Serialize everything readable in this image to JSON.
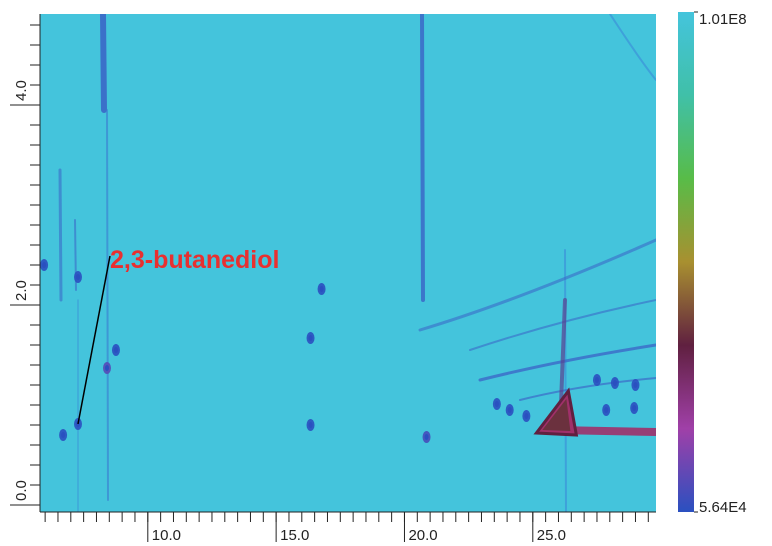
{
  "chart_data": {
    "type": "heatmap",
    "xlim": [
      5.8,
      29.8
    ],
    "ylim": [
      -0.07,
      4.91
    ],
    "xticks": [
      {
        "value": 10,
        "label": "10.0"
      },
      {
        "value": 15,
        "label": "15.0"
      },
      {
        "value": 20,
        "label": "20.0"
      },
      {
        "value": 25,
        "label": "25.0"
      }
    ],
    "yticks": [
      {
        "value": 0,
        "label": "0.0"
      },
      {
        "value": 2,
        "label": "2.0"
      },
      {
        "value": 4,
        "label": "4.0"
      }
    ],
    "background": "#44c4dc",
    "colorbar": {
      "log": true,
      "lim": [
        56400,
        101000000
      ],
      "ticks": [
        {
          "value": 101000000,
          "label": "1.01E8"
        },
        {
          "value": 56400,
          "label": "5.64E4"
        }
      ],
      "colors": [
        "#2a50c0",
        "#a040a8",
        "#602040",
        "#a89030",
        "#58bc48",
        "#40c0a8",
        "#44c4dc"
      ]
    },
    "peaks": [
      {
        "x": 6.7,
        "y": 0.7,
        "intensity": 57000
      },
      {
        "x": 7.28,
        "y": 0.81,
        "intensity": 57000
      },
      {
        "x": 8.41,
        "y": 1.37,
        "intensity": 90000
      },
      {
        "x": 8.76,
        "y": 1.55,
        "intensity": 57000
      },
      {
        "x": 7.28,
        "y": 2.28,
        "intensity": 57000
      },
      {
        "x": 5.96,
        "y": 2.4,
        "intensity": 57000
      },
      {
        "x": 16.77,
        "y": 2.16,
        "intensity": 57000
      },
      {
        "x": 16.34,
        "y": 1.67,
        "intensity": 57000
      },
      {
        "x": 16.34,
        "y": 0.8,
        "intensity": 57000
      },
      {
        "x": 20.86,
        "y": 0.68,
        "intensity": 76000
      },
      {
        "x": 23.6,
        "y": 1.01,
        "intensity": 57000
      },
      {
        "x": 24.1,
        "y": 0.95,
        "intensity": 57000
      },
      {
        "x": 24.75,
        "y": 0.89,
        "intensity": 57000
      },
      {
        "x": 27.5,
        "y": 1.25,
        "intensity": 57000
      },
      {
        "x": 28.2,
        "y": 1.22,
        "intensity": 57000
      },
      {
        "x": 29.0,
        "y": 1.2,
        "intensity": 57000
      },
      {
        "x": 27.86,
        "y": 0.95,
        "intensity": 57000
      },
      {
        "x": 28.95,
        "y": 0.97,
        "intensity": 57000
      },
      {
        "x": 25.84,
        "y": 0.8,
        "intensity": 830000
      }
    ],
    "annotation": {
      "text": "2,3-butanediol",
      "x": 7.28,
      "y": 0.81
    }
  }
}
